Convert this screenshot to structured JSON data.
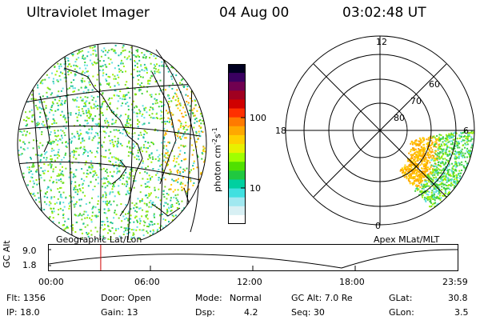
{
  "header": {
    "instrument": "Ultraviolet Imager",
    "date": "04 Aug 00",
    "time": "03:02:48 UT"
  },
  "geo_panel": {
    "label": "Geographic Lat/Lon"
  },
  "polar_panel": {
    "label": "Apex MLat/MLT",
    "mlt_labels": [
      "12",
      "18",
      "6",
      "0"
    ],
    "lat_labels": [
      "60",
      "70",
      "80"
    ]
  },
  "colorbar": {
    "unit": "photon cm",
    "unit_exp1": "-2",
    "unit_mid": "s",
    "unit_exp2": "-1",
    "ticks": [
      "100",
      "10"
    ],
    "colors": [
      "#000020",
      "#3a0060",
      "#700050",
      "#a00020",
      "#d00000",
      "#ff3000",
      "#ff7a00",
      "#ffa800",
      "#ffd000",
      "#e8f000",
      "#a0ff00",
      "#50e000",
      "#20c840",
      "#00d0a0",
      "#40e0e0",
      "#a0e8f0",
      "#d8f0f4",
      "#ffffff"
    ]
  },
  "altitude": {
    "axis_label": "GC Alt",
    "ticks": [
      "9.0",
      "1.8"
    ],
    "time_ticks": [
      "00:00",
      "06:00",
      "12:00",
      "18:00",
      "23:59"
    ],
    "marker_time": "03:02:48"
  },
  "footer": {
    "flt": "Flt: 1356",
    "ip": "IP: 18.0",
    "door": "Door: Open",
    "gain": "Gain: 13",
    "mode_label": "Mode:",
    "mode_value": "Normal",
    "dsp_label": "Dsp:",
    "dsp_value": "4.2",
    "gcalt": "GC Alt: 7.0 Re",
    "seq": "Seq: 30",
    "glat_label": "GLat:",
    "glat_value": "30.8",
    "glon_label": "GLon:",
    "glon_value": "3.5"
  },
  "colors": {
    "marker": "#d00000",
    "line": "#000000",
    "background": "#ffffff"
  }
}
